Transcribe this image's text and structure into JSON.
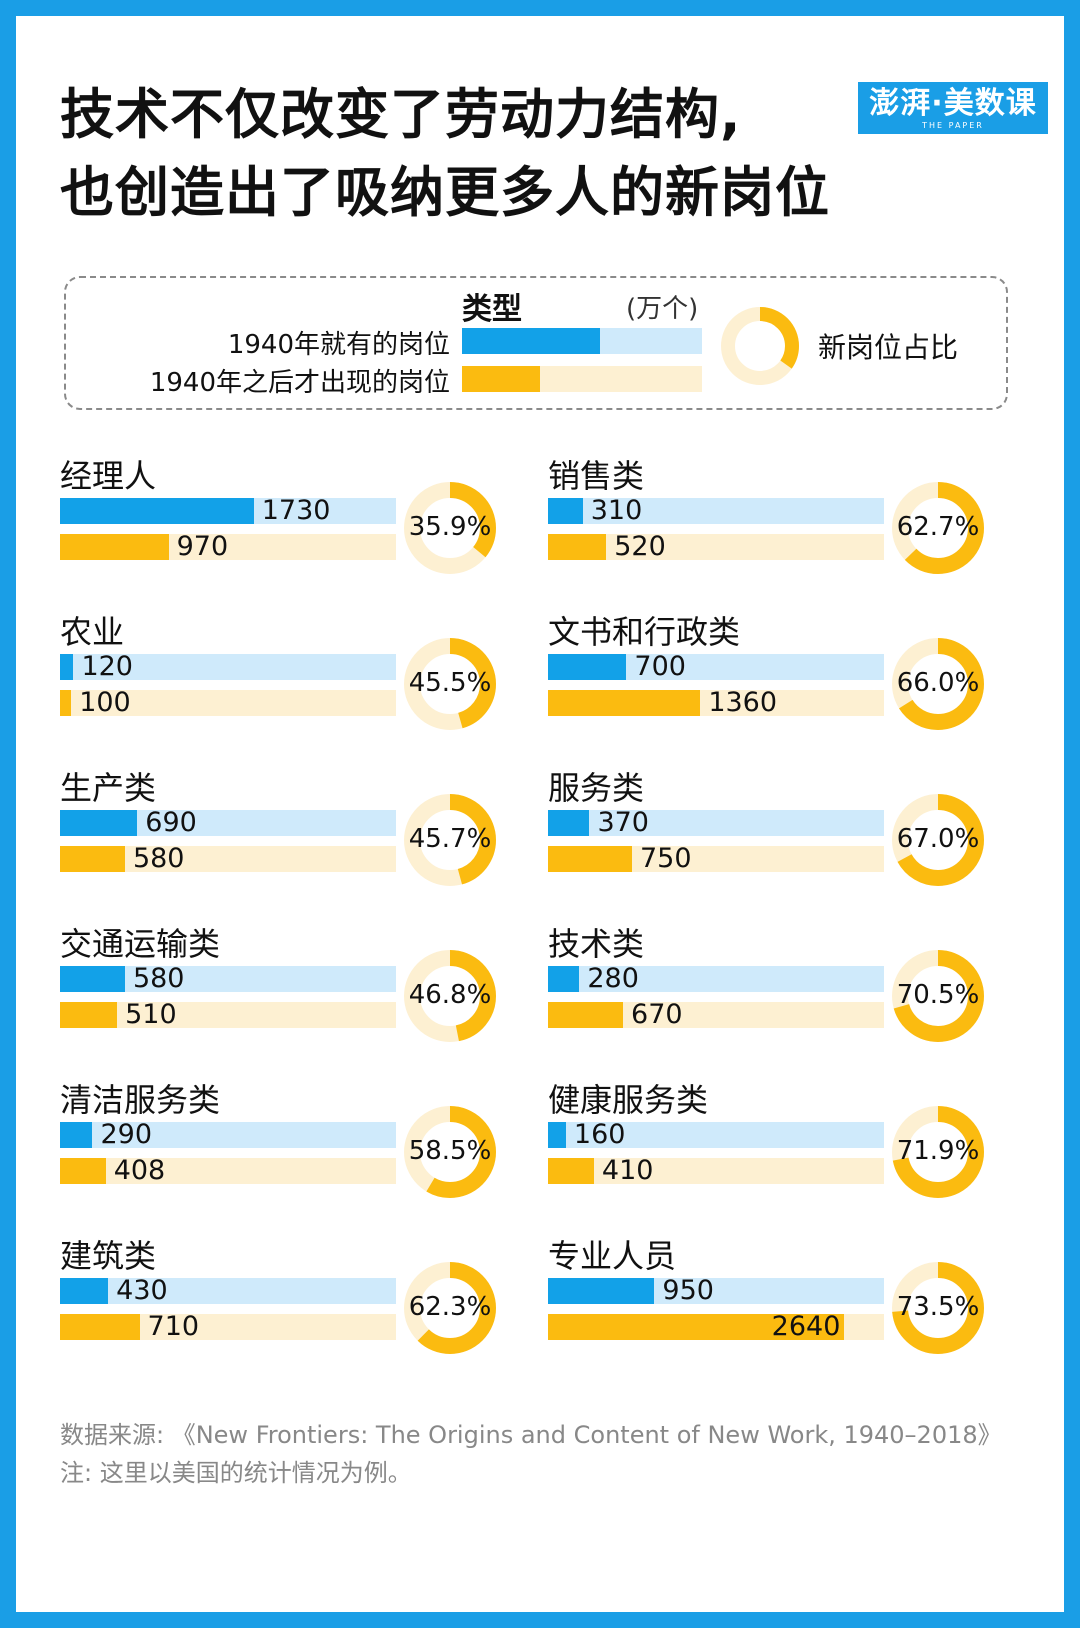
{
  "header": {
    "title_line1": "技术不仅改变了劳动力结构,",
    "title_line2": "也创造出了吸纳更多人的新岗位",
    "logo_text": "澎湃·美数课",
    "logo_sub": "THE PAPER"
  },
  "legend": {
    "type_label": "类型",
    "unit": "(万个)",
    "existing_label": "1940年就有的岗位",
    "new_label": "1940年之后才出现的岗位",
    "share_label": "新岗位占比"
  },
  "colors": {
    "existing": "#12a1e8",
    "existing_track": "#cfeafb",
    "new": "#fbbb10",
    "new_track": "#fdf0d2",
    "frame": "#1a9ee6"
  },
  "chart_data": {
    "type": "bar",
    "unit": "万个",
    "series": [
      {
        "name": "1940年就有的岗位",
        "values": [
          1730,
          120,
          690,
          580,
          290,
          430,
          310,
          700,
          370,
          280,
          160,
          950
        ]
      },
      {
        "name": "1940年之后才出现的岗位",
        "values": [
          970,
          100,
          580,
          510,
          408,
          710,
          520,
          1360,
          750,
          670,
          410,
          2640
        ]
      }
    ],
    "categories": [
      "经理人",
      "农业",
      "生产类",
      "交通运输类",
      "清洁服务类",
      "建筑类",
      "销售类",
      "文书和行政类",
      "服务类",
      "技术类",
      "健康服务类",
      "专业人员"
    ],
    "new_share": [
      "35.9%",
      "45.5%",
      "45.7%",
      "46.8%",
      "58.5%",
      "62.3%",
      "62.7%",
      "66.0%",
      "67.0%",
      "70.5%",
      "71.9%",
      "73.5%"
    ],
    "new_share_values": [
      35.9,
      45.5,
      45.7,
      46.8,
      58.5,
      62.3,
      62.7,
      66.0,
      67.0,
      70.5,
      71.9,
      73.5
    ],
    "bar_max": 3000
  },
  "footer": {
    "source_line1": "数据来源: 《New Frontiers: The Origins and Content of New Work, 1940–2018》",
    "note": "注: 这里以美国的统计情况为例。"
  }
}
